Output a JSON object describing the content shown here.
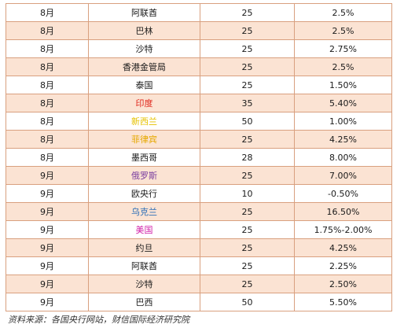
{
  "rows": [
    {
      "month": "8月",
      "country": "阿联酋",
      "color": "#1a1a1a",
      "days": "25",
      "rate": "2.5%"
    },
    {
      "month": "8月",
      "country": "巴林",
      "color": "#1a1a1a",
      "days": "25",
      "rate": "2.5%"
    },
    {
      "month": "8月",
      "country": "沙特",
      "color": "#1a1a1a",
      "days": "25",
      "rate": "2.75%"
    },
    {
      "month": "8月",
      "country": "香港金管局",
      "color": "#1a1a1a",
      "days": "25",
      "rate": "2.5%"
    },
    {
      "month": "8月",
      "country": "泰国",
      "color": "#1a1a1a",
      "days": "25",
      "rate": "1.50%"
    },
    {
      "month": "8月",
      "country": "印度",
      "color": "#e0261b",
      "days": "35",
      "rate": "5.40%"
    },
    {
      "month": "8月",
      "country": "新西兰",
      "color": "#e6c200",
      "days": "50",
      "rate": "1.00%"
    },
    {
      "month": "8月",
      "country": "菲律宾",
      "color": "#e6a800",
      "days": "25",
      "rate": "4.25%"
    },
    {
      "month": "8月",
      "country": "墨西哥",
      "color": "#1a1a1a",
      "days": "28",
      "rate": "8.00%"
    },
    {
      "month": "9月",
      "country": "俄罗斯",
      "color": "#7b3fa0",
      "days": "25",
      "rate": "7.00%"
    },
    {
      "month": "9月",
      "country": "欧央行",
      "color": "#1a1a1a",
      "days": "10",
      "rate": "-0.50%"
    },
    {
      "month": "9月",
      "country": "乌克兰",
      "color": "#2e6fb7",
      "days": "25",
      "rate": "16.50%"
    },
    {
      "month": "9月",
      "country": "美国",
      "color": "#d11fa8",
      "days": "25",
      "rate": "1.75%-2.00%"
    },
    {
      "month": "9月",
      "country": "约旦",
      "color": "#1a1a1a",
      "days": "25",
      "rate": "4.25%"
    },
    {
      "month": "9月",
      "country": "阿联酋",
      "color": "#1a1a1a",
      "days": "25",
      "rate": "2.25%"
    },
    {
      "month": "9月",
      "country": "沙特",
      "color": "#1a1a1a",
      "days": "25",
      "rate": "2.50%"
    },
    {
      "month": "9月",
      "country": "巴西",
      "color": "#1a1a1a",
      "days": "50",
      "rate": "5.50%"
    }
  ],
  "source": "资料来源：各国央行网站，财信国际经济研究院"
}
